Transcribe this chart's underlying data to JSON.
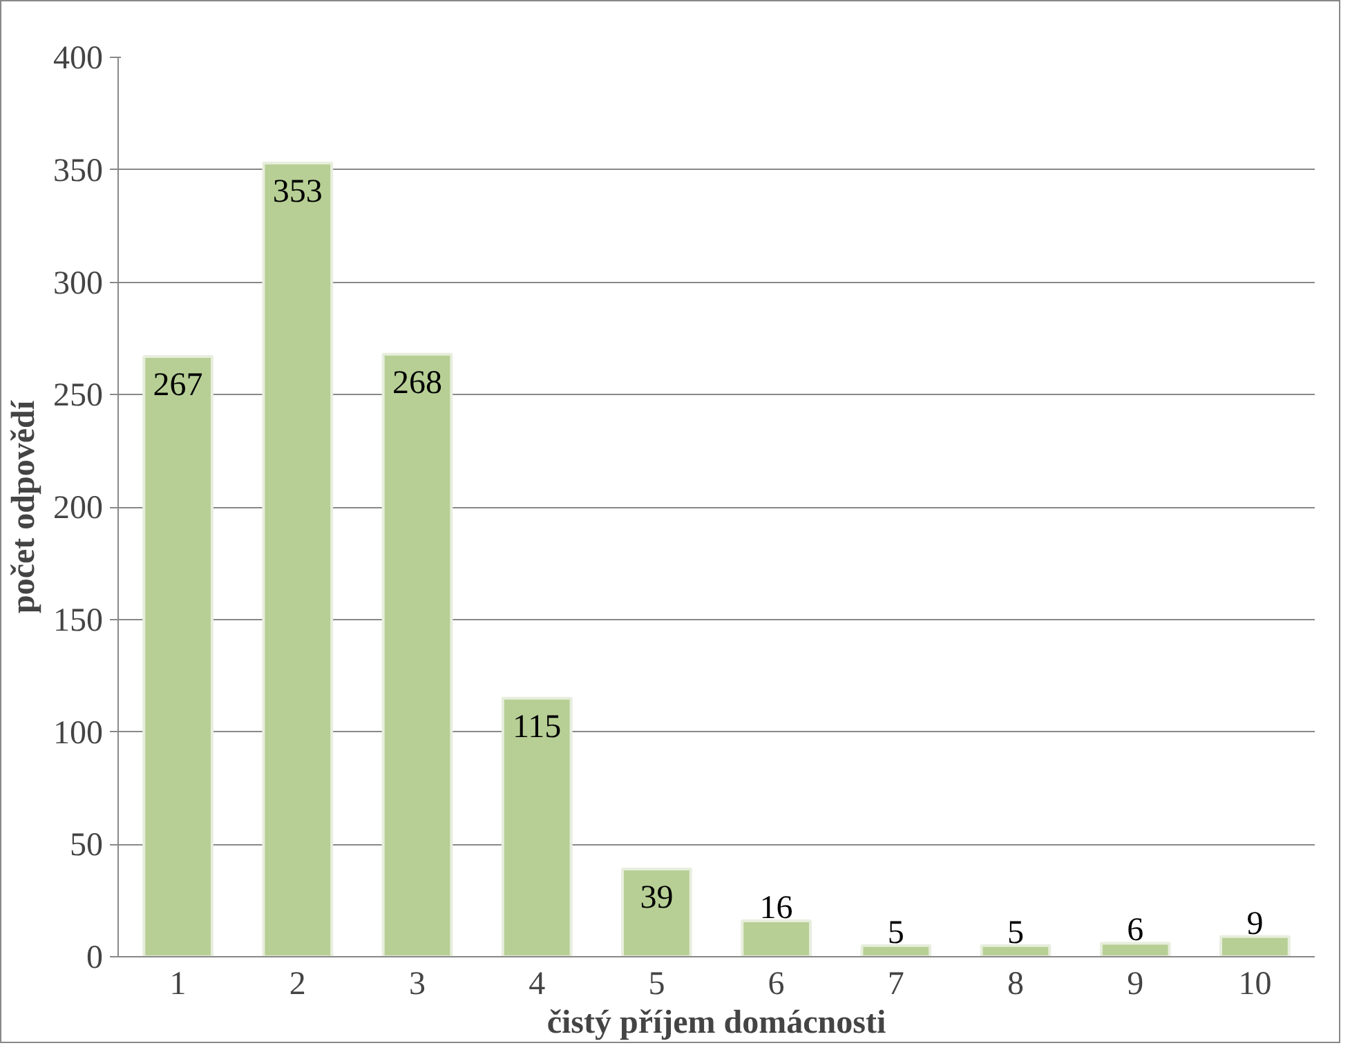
{
  "chart_data": {
    "type": "bar",
    "xlabel": "čistý příjem domácnosti",
    "ylabel": "počet odpovědí",
    "categories": [
      "1",
      "2",
      "3",
      "4",
      "5",
      "6",
      "7",
      "8",
      "9",
      "10"
    ],
    "values": [
      267,
      353,
      268,
      115,
      39,
      16,
      5,
      5,
      6,
      9
    ],
    "color": "#b7cf95",
    "ylim": [
      0,
      400
    ],
    "yticks": [
      0,
      50,
      100,
      150,
      200,
      250,
      300,
      350,
      400
    ],
    "grid": "y",
    "data_labels": true
  }
}
